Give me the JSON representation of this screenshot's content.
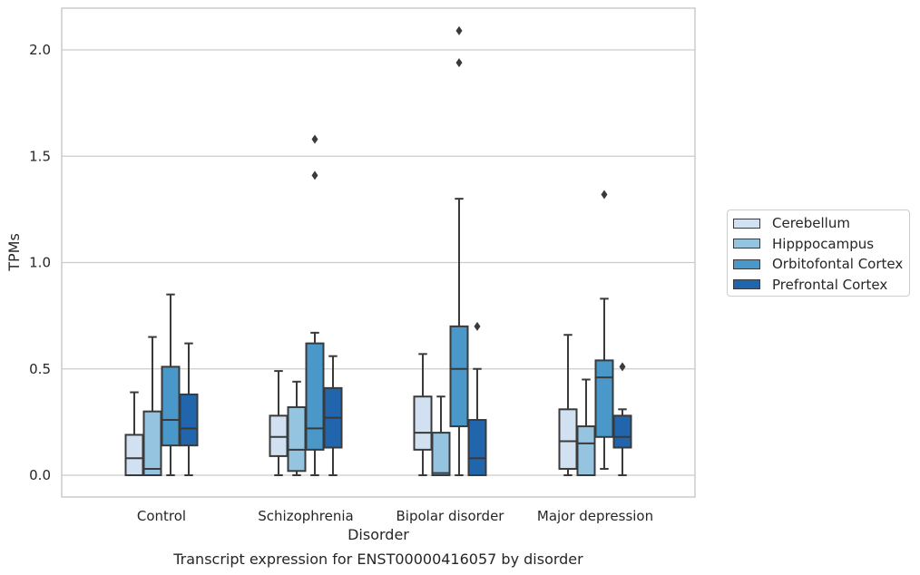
{
  "chart_data": {
    "type": "box",
    "title": "Transcript expression for ENST00000416057 by disorder",
    "xlabel": "Disorder",
    "ylabel": "TPMs",
    "ylim": [
      -0.1,
      2.2
    ],
    "yticks": [
      0.0,
      0.5,
      1.0,
      1.5,
      2.0
    ],
    "ytick_labels": [
      "0.0",
      "0.5",
      "1.0",
      "1.5",
      "2.0"
    ],
    "grid": "horizontal",
    "legend_position": "right",
    "categories": [
      "Control",
      "Schizophrenia",
      "Bipolar disorder",
      "Major depression"
    ],
    "series": [
      {
        "name": "Cerebellum",
        "color": "#d1e1f1",
        "boxes": [
          {
            "whislo": 0.0,
            "q1": 0.0,
            "med": 0.08,
            "q3": 0.19,
            "whishi": 0.39,
            "fliers": []
          },
          {
            "whislo": 0.0,
            "q1": 0.09,
            "med": 0.18,
            "q3": 0.28,
            "whishi": 0.49,
            "fliers": []
          },
          {
            "whislo": 0.0,
            "q1": 0.12,
            "med": 0.2,
            "q3": 0.37,
            "whishi": 0.57,
            "fliers": []
          },
          {
            "whislo": 0.0,
            "q1": 0.03,
            "med": 0.16,
            "q3": 0.31,
            "whishi": 0.66,
            "fliers": []
          }
        ]
      },
      {
        "name": "Hipppocampus",
        "color": "#94c4df",
        "boxes": [
          {
            "whislo": 0.0,
            "q1": 0.0,
            "med": 0.03,
            "q3": 0.3,
            "whishi": 0.65,
            "fliers": []
          },
          {
            "whislo": 0.0,
            "q1": 0.02,
            "med": 0.12,
            "q3": 0.32,
            "whishi": 0.44,
            "fliers": []
          },
          {
            "whislo": 0.0,
            "q1": 0.0,
            "med": 0.01,
            "q3": 0.2,
            "whishi": 0.37,
            "fliers": []
          },
          {
            "whislo": 0.0,
            "q1": 0.0,
            "med": 0.15,
            "q3": 0.23,
            "whishi": 0.45,
            "fliers": []
          }
        ]
      },
      {
        "name": "Orbitofontal Cortex",
        "color": "#4a98c9",
        "boxes": [
          {
            "whislo": 0.0,
            "q1": 0.14,
            "med": 0.26,
            "q3": 0.51,
            "whishi": 0.85,
            "fliers": []
          },
          {
            "whislo": 0.0,
            "q1": 0.12,
            "med": 0.22,
            "q3": 0.62,
            "whishi": 0.67,
            "fliers": [
              1.41,
              1.58
            ]
          },
          {
            "whislo": 0.0,
            "q1": 0.23,
            "med": 0.5,
            "q3": 0.7,
            "whishi": 1.3,
            "fliers": [
              1.94,
              2.09
            ]
          },
          {
            "whislo": 0.03,
            "q1": 0.18,
            "med": 0.46,
            "q3": 0.54,
            "whishi": 0.83,
            "fliers": [
              1.32
            ]
          }
        ]
      },
      {
        "name": "Prefrontal Cortex",
        "color": "#2166ac",
        "boxes": [
          {
            "whislo": 0.0,
            "q1": 0.14,
            "med": 0.22,
            "q3": 0.38,
            "whishi": 0.62,
            "fliers": []
          },
          {
            "whislo": 0.0,
            "q1": 0.13,
            "med": 0.27,
            "q3": 0.41,
            "whishi": 0.56,
            "fliers": []
          },
          {
            "whislo": 0.0,
            "q1": 0.0,
            "med": 0.08,
            "q3": 0.26,
            "whishi": 0.5,
            "fliers": [
              0.7
            ]
          },
          {
            "whislo": 0.0,
            "q1": 0.13,
            "med": 0.18,
            "q3": 0.28,
            "whishi": 0.31,
            "fliers": [
              0.51
            ]
          }
        ]
      }
    ]
  }
}
